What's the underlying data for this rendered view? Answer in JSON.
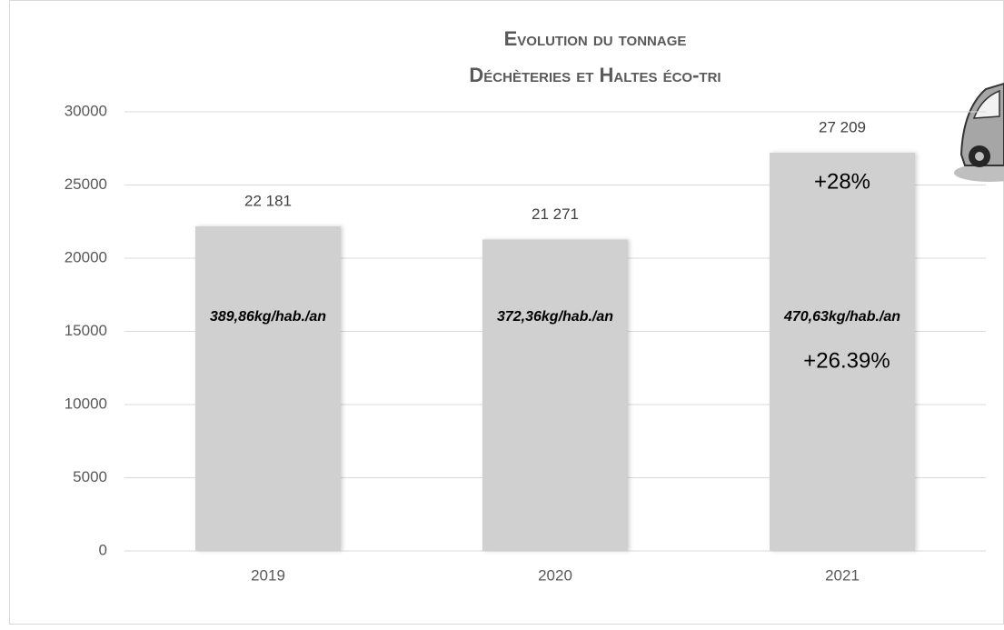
{
  "chart_data": {
    "type": "bar",
    "title": "Evolution du tonnage",
    "subtitle": "Déchèteries et Haltes éco-tri",
    "categories": [
      "2019",
      "2020",
      "2021"
    ],
    "values": [
      22181,
      21271,
      27209
    ],
    "value_labels": [
      "22 181",
      "21 271",
      "27 209"
    ],
    "bar_notes": [
      "389,86kg/hab./an",
      "372,36kg/hab./an",
      "470,63kg/hab./an"
    ],
    "annotations": [
      "+28%",
      "+26.39%"
    ],
    "color": "#d0d0d0",
    "ylim": [
      0,
      30000
    ],
    "yticks": [
      0,
      5000,
      10000,
      15000,
      20000,
      25000,
      30000
    ],
    "grid": true
  }
}
